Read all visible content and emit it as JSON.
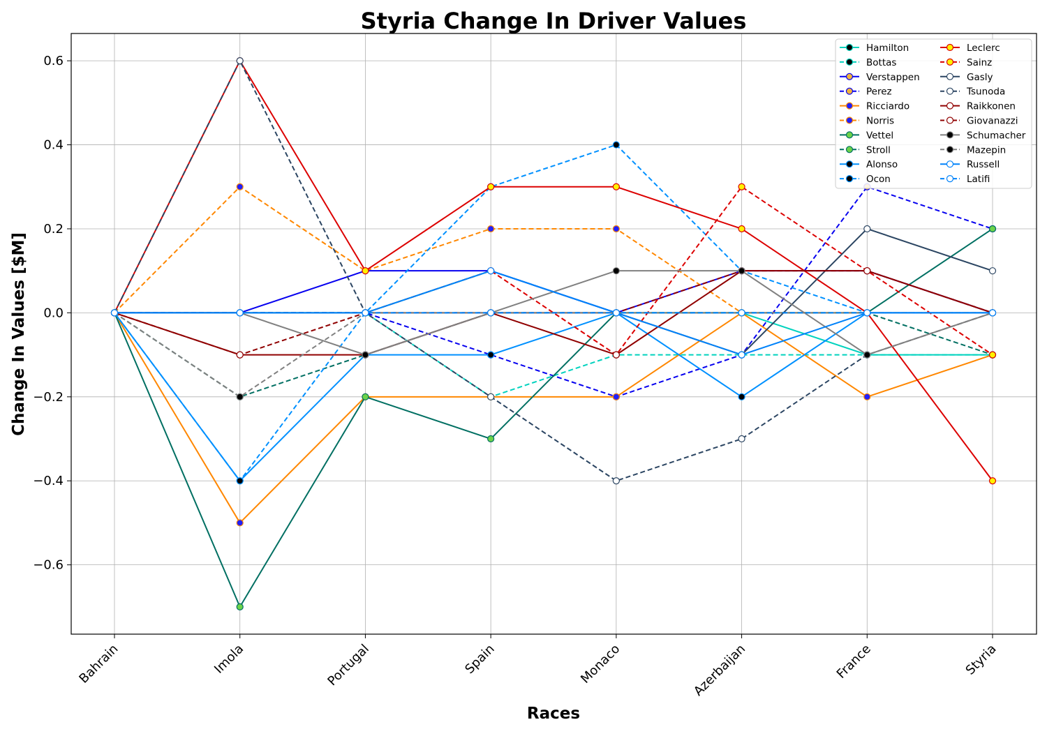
{
  "chart_data": {
    "type": "line",
    "title": "Styria Change In Driver Values",
    "xlabel": "Races",
    "ylabel": "Change In Values [$M]",
    "categories": [
      "Bahrain",
      "Imola",
      "Portugal",
      "Spain",
      "Monaco",
      "Azerbaijan",
      "France",
      "Styria"
    ],
    "ylim": [
      -0.765,
      0.665
    ],
    "yticks": [
      -0.6,
      -0.4,
      -0.2,
      0.0,
      0.2,
      0.4,
      0.6
    ],
    "ytick_labels": [
      "−0.6",
      "−0.4",
      "−0.2",
      "0.0",
      "0.2",
      "0.4",
      "0.6"
    ],
    "grid": true,
    "legend_position": "top-right",
    "legend_columns": 2,
    "series": [
      {
        "name": "Hamilton",
        "color": "#00d2be",
        "dash": "solid",
        "marker_fill": "#000000",
        "marker_edge": "#00d2be",
        "values": [
          0,
          0,
          0,
          0.1,
          0,
          0,
          -0.1,
          -0.1
        ]
      },
      {
        "name": "Bottas",
        "color": "#00d2be",
        "dash": "dashed",
        "marker_fill": "#000000",
        "marker_edge": "#00d2be",
        "values": [
          0,
          0,
          0,
          -0.2,
          -0.1,
          -0.1,
          -0.1,
          -0.1
        ]
      },
      {
        "name": "Verstappen",
        "color": "#0600ef",
        "dash": "solid",
        "marker_fill": "#f0b43c",
        "marker_edge": "#0600ef",
        "values": [
          0,
          0,
          0.1,
          0.1,
          0,
          0.1,
          0.1,
          0
        ]
      },
      {
        "name": "Perez",
        "color": "#0600ef",
        "dash": "dashed",
        "marker_fill": "#f0b43c",
        "marker_edge": "#0600ef",
        "values": [
          0,
          0,
          0,
          -0.1,
          -0.2,
          -0.1,
          0.3,
          0.2
        ]
      },
      {
        "name": "Ricciardo",
        "color": "#ff8700",
        "dash": "solid",
        "marker_fill": "#2020ff",
        "marker_edge": "#ff8700",
        "values": [
          0,
          -0.5,
          -0.2,
          -0.2,
          -0.2,
          0,
          -0.2,
          -0.1
        ]
      },
      {
        "name": "Norris",
        "color": "#ff8700",
        "dash": "dashed",
        "marker_fill": "#2020ff",
        "marker_edge": "#ff8700",
        "values": [
          0,
          0.3,
          0.1,
          0.2,
          0.2,
          0,
          0,
          0
        ]
      },
      {
        "name": "Vettel",
        "color": "#006f62",
        "dash": "solid",
        "marker_fill": "#6cd34a",
        "marker_edge": "#006f62",
        "values": [
          0,
          -0.7,
          -0.2,
          -0.3,
          0,
          0,
          0,
          0.2
        ]
      },
      {
        "name": "Stroll",
        "color": "#006f62",
        "dash": "dashed",
        "marker_fill": "#6cd34a",
        "marker_edge": "#006f62",
        "values": [
          0,
          -0.2,
          -0.1,
          0,
          0,
          0,
          0,
          -0.1
        ]
      },
      {
        "name": "Alonso",
        "color": "#0090ff",
        "dash": "solid",
        "marker_fill": "#000000",
        "marker_edge": "#0090ff",
        "values": [
          0,
          -0.4,
          -0.1,
          -0.1,
          0,
          -0.2,
          0,
          0
        ]
      },
      {
        "name": "Ocon",
        "color": "#0090ff",
        "dash": "dashed",
        "marker_fill": "#000000",
        "marker_edge": "#0090ff",
        "values": [
          0,
          -0.4,
          0,
          0.3,
          0.4,
          0.1,
          0,
          0
        ]
      },
      {
        "name": "Leclerc",
        "color": "#dc0000",
        "dash": "solid",
        "marker_fill": "#fff200",
        "marker_edge": "#dc0000",
        "values": [
          0,
          0.6,
          0.1,
          0.3,
          0.3,
          0.2,
          0,
          -0.4
        ]
      },
      {
        "name": "Sainz",
        "color": "#dc0000",
        "dash": "dashed",
        "marker_fill": "#fff200",
        "marker_edge": "#dc0000",
        "values": [
          0,
          0,
          0,
          0.1,
          -0.1,
          0.3,
          0.1,
          -0.1
        ]
      },
      {
        "name": "Gasly",
        "color": "#2b4562",
        "dash": "solid",
        "marker_fill": "#ffffff",
        "marker_edge": "#2b4562",
        "values": [
          0,
          0,
          0,
          0,
          0,
          -0.1,
          0.2,
          0.1
        ]
      },
      {
        "name": "Tsunoda",
        "color": "#2b4562",
        "dash": "dashed",
        "marker_fill": "#ffffff",
        "marker_edge": "#2b4562",
        "values": [
          0,
          0.6,
          0,
          -0.2,
          -0.4,
          -0.3,
          -0.1,
          0
        ]
      },
      {
        "name": "Raikkonen",
        "color": "#900000",
        "dash": "solid",
        "marker_fill": "#ffffff",
        "marker_edge": "#900000",
        "values": [
          0,
          -0.1,
          -0.1,
          0,
          -0.1,
          0.1,
          0.1,
          0
        ]
      },
      {
        "name": "Giovanazzi",
        "color": "#900000",
        "dash": "dashed",
        "marker_fill": "#ffffff",
        "marker_edge": "#900000",
        "values": [
          0,
          -0.1,
          0,
          0,
          0,
          0.1,
          0.1,
          0
        ]
      },
      {
        "name": "Schumacher",
        "color": "#808080",
        "dash": "solid",
        "marker_fill": "#000000",
        "marker_edge": "#808080",
        "values": [
          0,
          0,
          -0.1,
          0,
          0.1,
          0.1,
          -0.1,
          0
        ]
      },
      {
        "name": "Mazepin",
        "color": "#808080",
        "dash": "dashed",
        "marker_fill": "#000000",
        "marker_edge": "#808080",
        "values": [
          0,
          -0.2,
          0,
          0,
          0,
          0,
          0,
          0
        ]
      },
      {
        "name": "Russell",
        "color": "#0082fa",
        "dash": "solid",
        "marker_fill": "#ffffff",
        "marker_edge": "#0082fa",
        "values": [
          0,
          0,
          0,
          0.1,
          0,
          -0.1,
          0,
          0
        ]
      },
      {
        "name": "Latifi",
        "color": "#0082fa",
        "dash": "dashed",
        "marker_fill": "#ffffff",
        "marker_edge": "#0082fa",
        "values": [
          0,
          0,
          0,
          0,
          0,
          0,
          0,
          0
        ]
      }
    ]
  }
}
